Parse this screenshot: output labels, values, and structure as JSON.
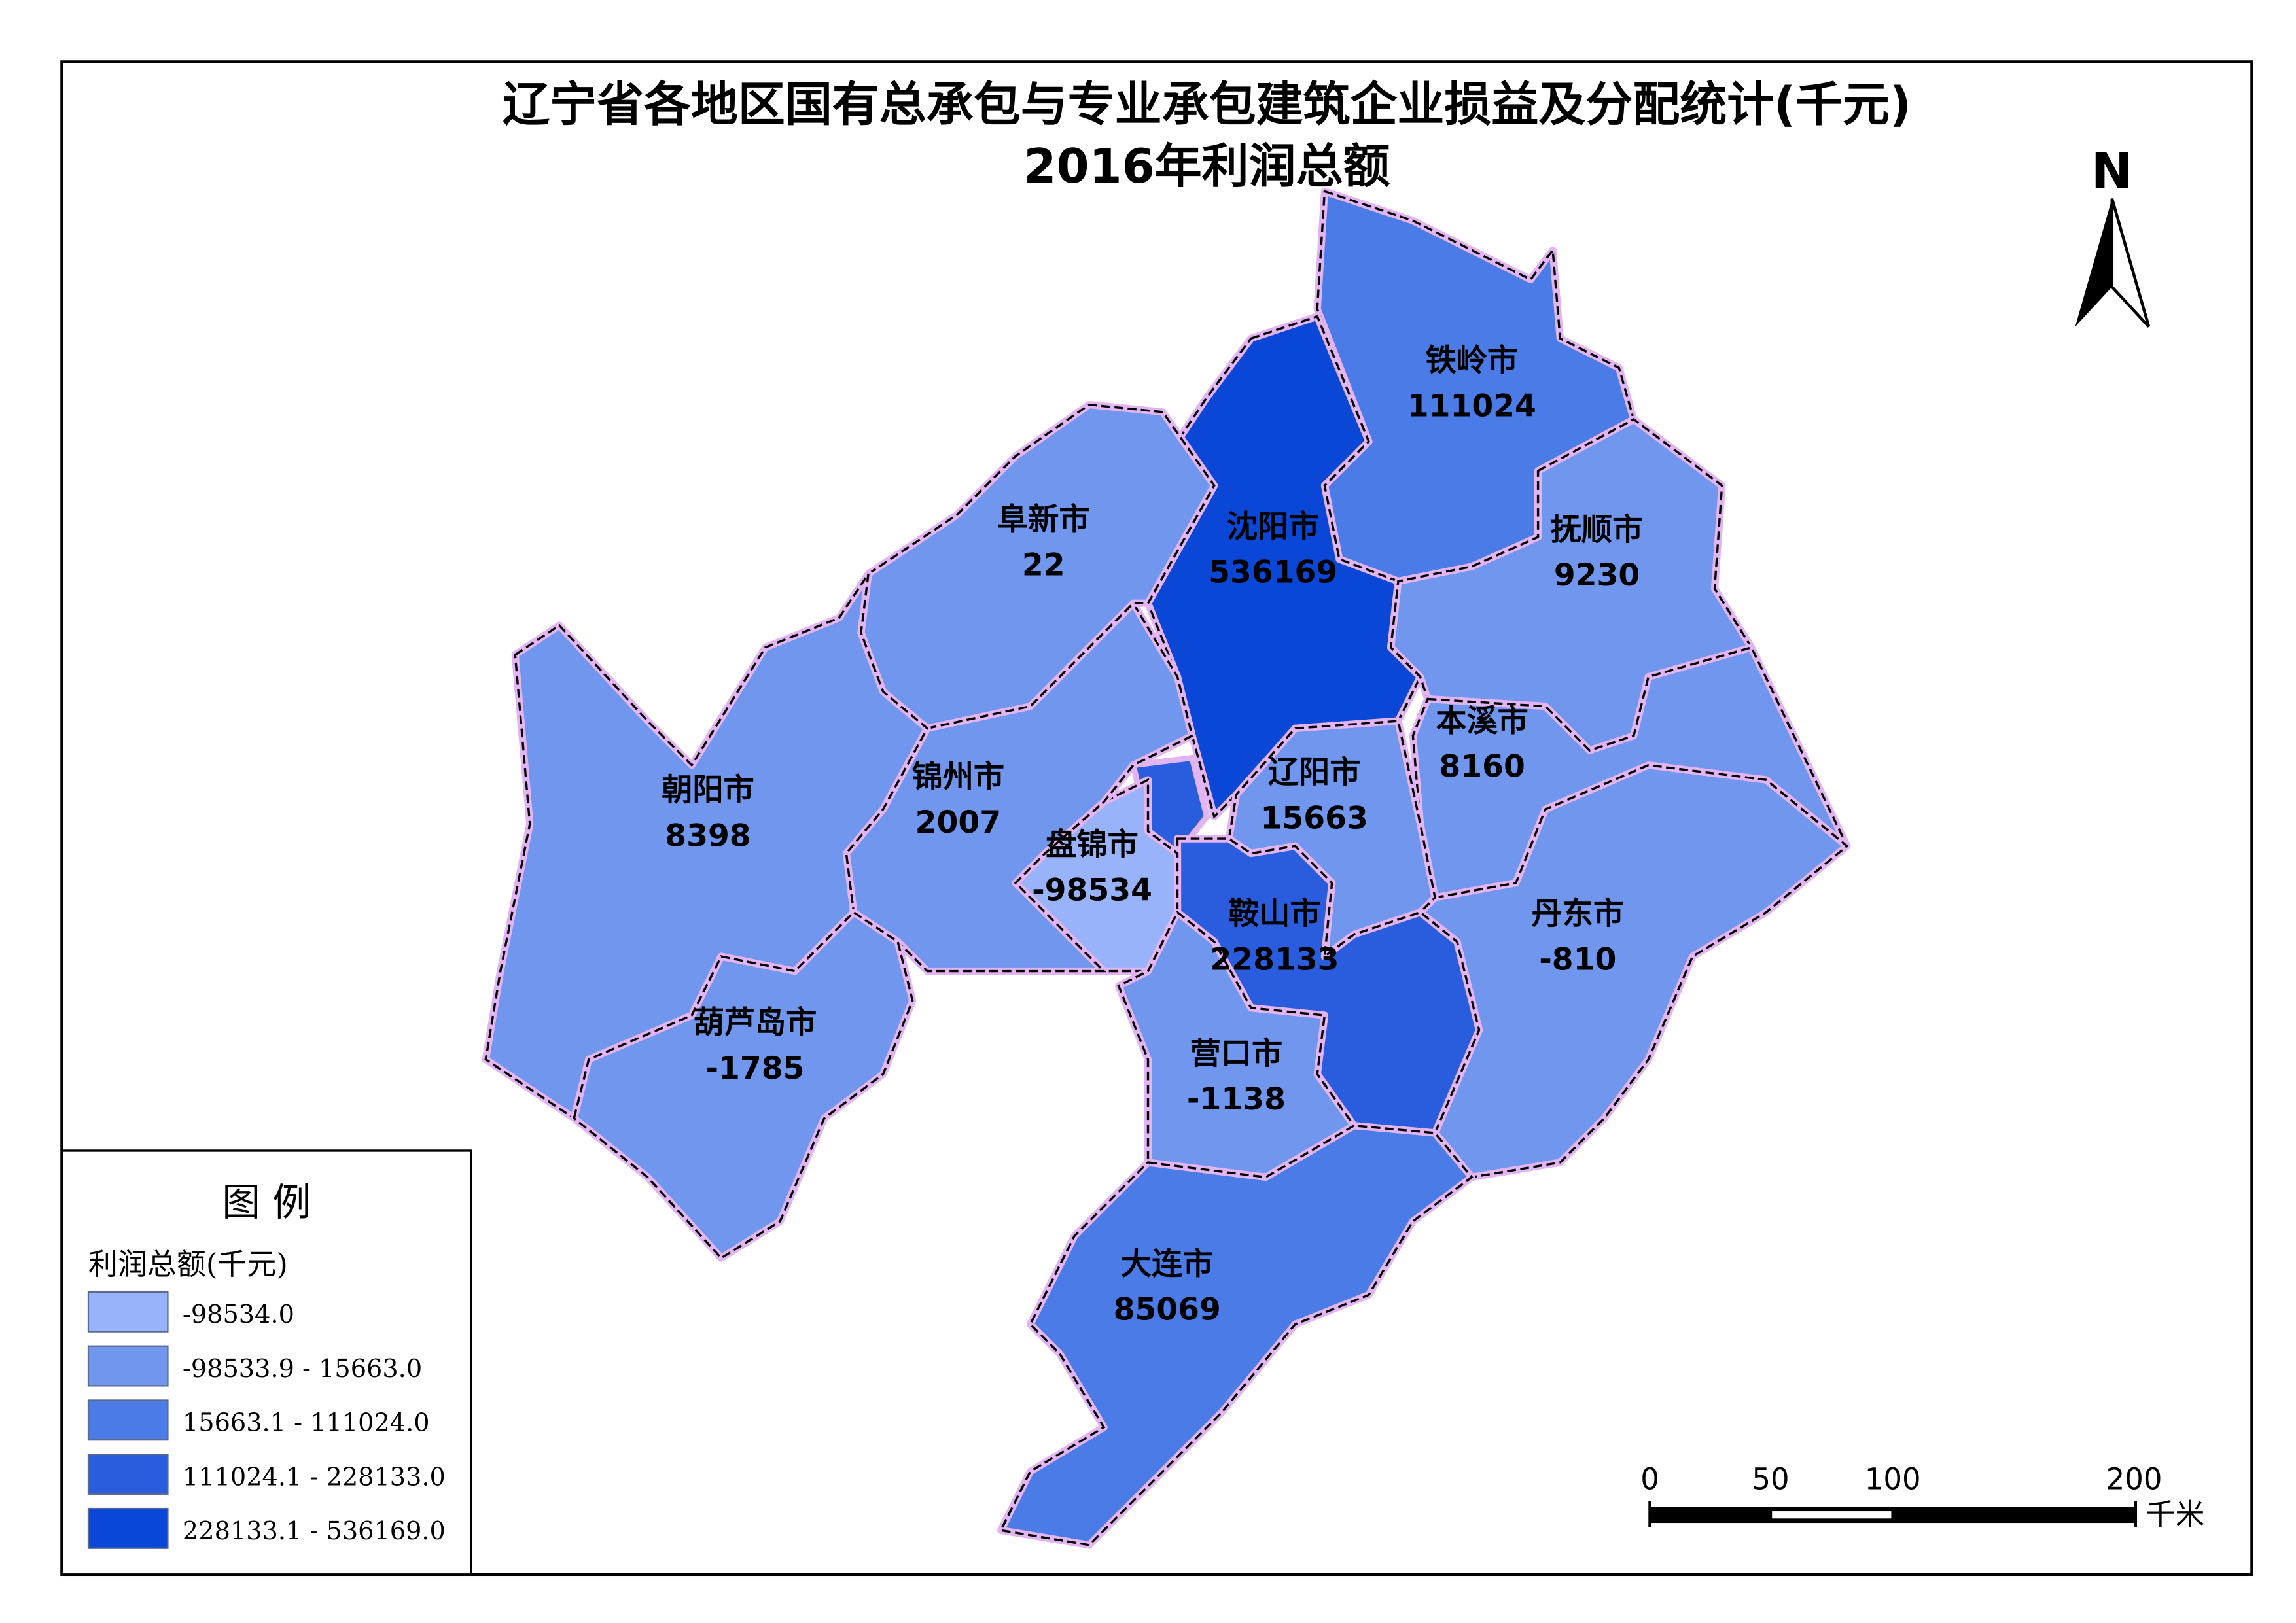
{
  "title": {
    "line1": "辽宁省各地区国有总承包与专业承包建筑企业损益及分配统计(千元)",
    "line2": "2016年利润总额"
  },
  "north_arrow": {
    "label": "N"
  },
  "legend": {
    "heading": "图 例",
    "field": "利润总额(千元)",
    "classes": [
      {
        "label": "-98534.0",
        "color": "#99b3fb"
      },
      {
        "label": "-98533.9 - 15663.0",
        "color": "#7096ee"
      },
      {
        "label": "15663.1 - 111024.0",
        "color": "#4a7be6"
      },
      {
        "label": "111024.1 - 228133.0",
        "color": "#2a5ddd"
      },
      {
        "label": "228133.1 - 536169.0",
        "color": "#0a47d6"
      }
    ]
  },
  "regions": [
    {
      "name": "铁岭市",
      "value": "111024",
      "class": 2
    },
    {
      "name": "沈阳市",
      "value": "536169",
      "class": 4
    },
    {
      "name": "抚顺市",
      "value": "9230",
      "class": 1
    },
    {
      "name": "本溪市",
      "value": "8160",
      "class": 1
    },
    {
      "name": "丹东市",
      "value": "-810",
      "class": 1
    },
    {
      "name": "辽阳市",
      "value": "15663",
      "class": 1
    },
    {
      "name": "鞍山市",
      "value": "228133",
      "class": 3
    },
    {
      "name": "盘锦市",
      "value": "-98534",
      "class": 0
    },
    {
      "name": "营口市",
      "value": "-1138",
      "class": 1
    },
    {
      "name": "大连市",
      "value": "85069",
      "class": 2
    },
    {
      "name": "锦州市",
      "value": "2007",
      "class": 1
    },
    {
      "name": "阜新市",
      "value": "22",
      "class": 1
    },
    {
      "name": "朝阳市",
      "value": "8398",
      "class": 1
    },
    {
      "name": "葫芦岛市",
      "value": "-1785",
      "class": 1
    }
  ],
  "scale_bar": {
    "ticks": [
      "0",
      "50",
      "100",
      "200"
    ],
    "unit": "千米"
  },
  "colors": {
    "outline_halo": "#e3b4f2",
    "outline": "#000000"
  }
}
